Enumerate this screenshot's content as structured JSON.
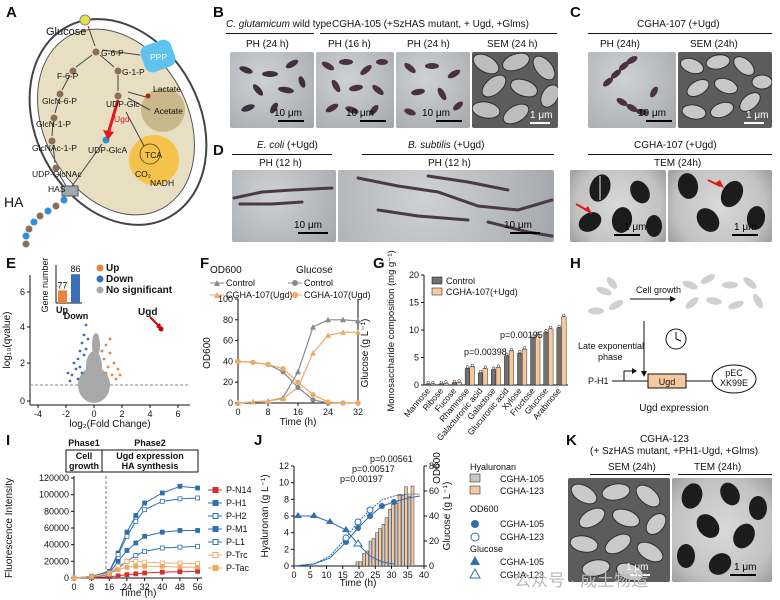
{
  "panel_letters": [
    "A",
    "B",
    "C",
    "D",
    "E",
    "F",
    "G",
    "H",
    "I",
    "J",
    "K"
  ],
  "panelA": {
    "nodes": [
      "Glucose",
      "G-6-P",
      "F-6-P",
      "G-1-P",
      "GlcN-6-P",
      "UDP-Glc",
      "GlcN-1-P",
      "Ugd",
      "GlcNAc-1-P",
      "UDP-GlcA",
      "UDP-GlcNAc",
      "HAS",
      "PPP",
      "Lactate",
      "Acetate",
      "TCA",
      "CO₂",
      "NADH",
      "HA"
    ]
  },
  "panelB": {
    "header_left": "C. glutamicum",
    "header_left_rest": " wild type",
    "header_right": "CGHA-105 (+SzHAS mutant, + Ugd, +Glms)",
    "captions": [
      "PH (24 h)",
      "PH (16 h)",
      "PH (24 h)",
      "SEM (24 h)"
    ],
    "scale": [
      "10 μm",
      "10 μm",
      "10 μm",
      "1 μm"
    ]
  },
  "panelC": {
    "header": "CGHA-107 (+Ugd)",
    "captions": [
      "PH (24h)",
      "SEM (24h)"
    ],
    "scale": [
      "10 μm",
      "1 μm"
    ]
  },
  "panelD": {
    "header1_i": "E. coli",
    "header1_r": " (+Ugd)",
    "header2_i": "B. subtilis",
    "header2_r": " (+Ugd)",
    "captions": [
      "PH (12 h)",
      "PH (12 h)"
    ],
    "scale": [
      "10 μm",
      "10 μm"
    ]
  },
  "panelC2": {
    "header": "CGHA-107 (+Ugd)",
    "caption": "TEM (24h)",
    "scale": [
      "1 μm",
      "1 μm"
    ]
  },
  "panelE": {
    "inset_ylabel": "Gene number",
    "inset_values": [
      77,
      86
    ],
    "inset_labels": [
      "Up",
      "Down"
    ],
    "legend": [
      "Up",
      "Down",
      "No significant"
    ],
    "annotation": "Ugd",
    "xlabel": "log₂(Fold Change)",
    "ylabel": "log₁₀(qvalue)",
    "xticks": [
      "-4",
      "-2",
      "0",
      "2",
      "4",
      "6"
    ],
    "yticks": [
      "0",
      "2",
      "4",
      "6"
    ],
    "colors": {
      "up": "#e8843b",
      "down": "#3b6fb8",
      "ns": "#a8a8a8",
      "ugd": "#cc0000"
    }
  },
  "panelF": {
    "legend_od": "OD600",
    "legend_glc": "Glucose",
    "legend_items": [
      "Control",
      "CGHA-107(Ugd)",
      "Control",
      "CGHA-107(Ugd)"
    ],
    "xlabel": "Time (h)",
    "ylabel_left": "OD600",
    "ylabel_right": "Glucose (g L⁻¹)",
    "xticks": [
      "0",
      "8",
      "16",
      "24",
      "32"
    ],
    "yticks": [
      "0",
      "20",
      "40",
      "60",
      "80",
      "100"
    ]
  },
  "panelG": {
    "ylabel": "Monosaccharide composition (mg g⁻¹)",
    "legend": [
      "Control",
      "CGHA-107(+Ugd)"
    ],
    "pvals": [
      "p=0.00398",
      "p=0.00195"
    ],
    "yticks": [
      "0",
      "5",
      "10",
      "15",
      "20"
    ]
  },
  "panelH": {
    "labels": [
      "Cell growth",
      "Late exponential phase",
      "P-H1",
      "Ugd",
      "pEC XK99E",
      "Ugd expression"
    ]
  },
  "panelI": {
    "phase1": "Phase1",
    "phase2": "Phase2",
    "phase1_desc": "Cell growth",
    "phase2_desc": "Ugd expression HA synthesis",
    "ylabel": "Fluorescence Intensity",
    "xlabel": "Time (h)",
    "xticks": [
      "0",
      "8",
      "16",
      "24",
      "32",
      "40",
      "48",
      "56"
    ],
    "yticks": [
      "0",
      "20000",
      "40000",
      "60000",
      "80000",
      "100000",
      "120000"
    ]
  },
  "panelJ": {
    "ylabel_left": "Hyaluronan (g L⁻¹)",
    "ylabel_right": "Glucose (g L⁻¹)",
    "ylabel_od": "OD600",
    "xlabel": "Time (h)",
    "pvals": [
      "p=0.00561",
      "p=0.00517",
      "p=0.00197"
    ],
    "xticks": [
      "0",
      "5",
      "10",
      "15",
      "20",
      "25",
      "30",
      "35",
      "40"
    ],
    "yticks_left": [
      "0",
      "2",
      "4",
      "6",
      "8",
      "10",
      "12"
    ],
    "yticks_right": [
      "0",
      "20",
      "40",
      "60",
      "80"
    ],
    "legend_titles": [
      "Hyaluronan",
      "OD600",
      "Glucose"
    ],
    "legend_items": [
      "CGHA-105",
      "CGHA-123",
      "CGHA-105",
      "CGHA-123",
      "CGHA-105",
      "CGHA-123"
    ]
  },
  "panelK": {
    "header1": "CGHA-123",
    "header2": "(+ SzHAS mutant, +PH1-Ugd, +Glms)",
    "captions": [
      "SEM (24h)",
      "TEM (24h)"
    ],
    "scale": [
      "1 μm",
      "1 μm"
    ]
  },
  "watermark": "公众号 · 成土物造",
  "chart_data": [
    {
      "id": "E-inset",
      "type": "bar",
      "categories": [
        "Up",
        "Down"
      ],
      "values": [
        77,
        86
      ],
      "ylabel": "Gene number",
      "ylim": [
        70,
        90
      ]
    },
    {
      "id": "F",
      "type": "line",
      "xlabel": "Time (h)",
      "ylabel": "OD600 / Glucose (g L⁻¹)",
      "ylim": [
        0,
        100
      ],
      "xlim": [
        0,
        32
      ],
      "series": [
        {
          "name": "OD600 Control",
          "x": [
            0,
            4,
            8,
            12,
            16,
            20,
            24,
            28,
            32
          ],
          "values": [
            0,
            1,
            2,
            5,
            30,
            73,
            80,
            80,
            79
          ]
        },
        {
          "name": "OD600 CGHA-107(Ugd)",
          "x": [
            0,
            4,
            8,
            12,
            16,
            20,
            24,
            28,
            32
          ],
          "values": [
            0,
            1,
            2,
            4,
            15,
            48,
            65,
            68,
            68
          ]
        },
        {
          "name": "Glucose Control",
          "x": [
            0,
            4,
            8,
            12,
            16,
            20,
            24,
            28,
            32
          ],
          "values": [
            40,
            39,
            37,
            30,
            15,
            3,
            0,
            0,
            0
          ]
        },
        {
          "name": "Glucose CGHA-107(Ugd)",
          "x": [
            0,
            4,
            8,
            12,
            16,
            20,
            24,
            28,
            32
          ],
          "values": [
            40,
            39,
            37,
            33,
            20,
            8,
            1,
            0,
            0
          ]
        }
      ]
    },
    {
      "id": "G",
      "type": "bar",
      "categories": [
        "Mannose",
        "Ribose",
        "Fucose",
        "Rhamnose",
        "Galacturonic acid",
        "Galactose",
        "Glucuronic acid",
        "Xylose",
        "Fructose",
        "Glucose",
        "Arabinose"
      ],
      "ylabel": "Monosaccharide composition (mg g⁻¹)",
      "ylim": [
        0,
        20
      ],
      "series": [
        {
          "name": "Control",
          "values": [
            0.2,
            0.2,
            0.4,
            3.0,
            2.2,
            2.8,
            5.3,
            5.8,
            8.6,
            9.6,
            10.4
          ]
        },
        {
          "name": "CGHA-107(+Ugd)",
          "values": [
            0.2,
            0.3,
            0.5,
            3.3,
            3.0,
            3.2,
            6.2,
            6.5,
            9.1,
            10.2,
            12.4
          ]
        }
      ]
    },
    {
      "id": "I",
      "type": "line",
      "xlabel": "Time (h)",
      "ylabel": "Fluorescence Intensity",
      "ylim": [
        0,
        120000
      ],
      "x": [
        0,
        8,
        16,
        20,
        24,
        28,
        32,
        40,
        48,
        56
      ],
      "series": [
        {
          "name": "P-N14",
          "values": [
            0,
            500,
            1500,
            2500,
            4000,
            5000,
            6000,
            7000,
            7500,
            8000
          ]
        },
        {
          "name": "P-H1",
          "values": [
            0,
            2000,
            8000,
            30000,
            55000,
            75000,
            90000,
            102000,
            110000,
            108000
          ]
        },
        {
          "name": "P-H2",
          "values": [
            0,
            2000,
            7000,
            28000,
            50000,
            68000,
            82000,
            92000,
            95000,
            96000
          ]
        },
        {
          "name": "P-M1",
          "values": [
            0,
            1500,
            6000,
            20000,
            33000,
            42000,
            50000,
            55000,
            57000,
            57000
          ]
        },
        {
          "name": "P-L1",
          "values": [
            0,
            1000,
            4000,
            12000,
            20000,
            27000,
            32000,
            36000,
            37000,
            38000
          ]
        },
        {
          "name": "P-Trc",
          "values": [
            0,
            1500,
            6000,
            14000,
            20000,
            20000,
            19000,
            18000,
            18000,
            17000
          ]
        },
        {
          "name": "P-Tac",
          "values": [
            0,
            1500,
            5000,
            10000,
            13000,
            14000,
            14000,
            14000,
            13000,
            13000
          ]
        }
      ]
    },
    {
      "id": "J",
      "type": "bar",
      "xlabel": "Time (h)",
      "ylabel": "Hyaluronan (g L⁻¹)",
      "ylim": [
        0,
        12
      ],
      "x": [
        5,
        10,
        15,
        20,
        22,
        24,
        26,
        28,
        30,
        32,
        34,
        36
      ],
      "series": [
        {
          "name": "Hyaluronan CGHA-105",
          "values": [
            0,
            0,
            0,
            0.5,
            1.5,
            3,
            4,
            5,
            6.8,
            7.5,
            8.5,
            8.4
          ]
        },
        {
          "name": "Hyaluronan CGHA-123",
          "values": [
            0,
            0,
            0,
            0.5,
            1.8,
            3.3,
            4.5,
            5.8,
            7.4,
            8.6,
            9.5,
            9.6
          ]
        }
      ]
    }
  ]
}
